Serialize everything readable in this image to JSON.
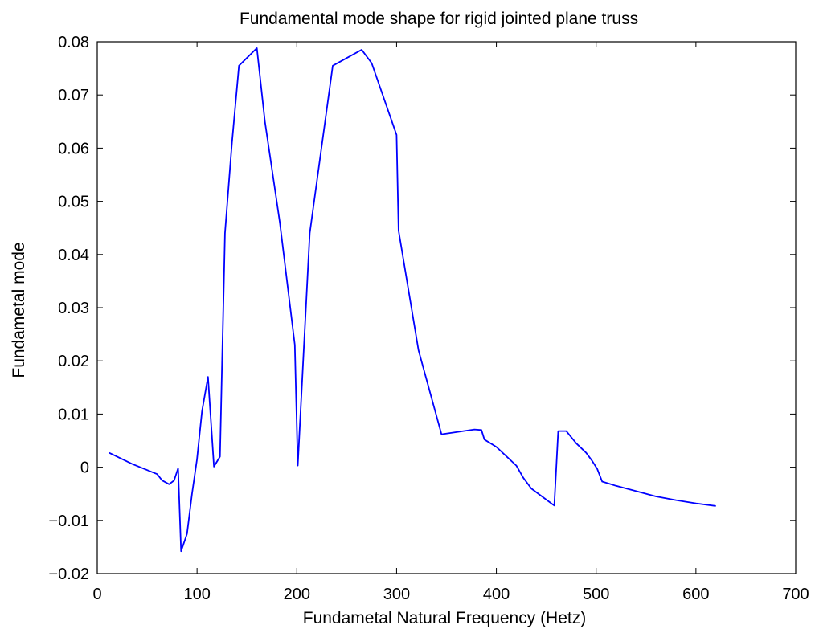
{
  "chart_data": {
    "type": "line",
    "title": "Fundamental mode shape for rigid jointed plane truss",
    "xlabel": "Fundametal Natural Frequency (Hetz)",
    "ylabel": "Fundametal mode",
    "xlim": [
      0,
      700
    ],
    "ylim": [
      -0.02,
      0.08
    ],
    "xticks": [
      0,
      100,
      200,
      300,
      400,
      500,
      600,
      700
    ],
    "xtick_labels": [
      "0",
      "100",
      "200",
      "300",
      "400",
      "500",
      "600",
      "700"
    ],
    "yticks": [
      -0.02,
      -0.01,
      0,
      0.01,
      0.02,
      0.03,
      0.04,
      0.05,
      0.06,
      0.07,
      0.08
    ],
    "ytick_labels": [
      "−0.02",
      "−0.01",
      "0",
      "0.01",
      "0.02",
      "0.03",
      "0.04",
      "0.05",
      "0.06",
      "0.07",
      "0.08"
    ],
    "grid": false,
    "line_color": "#0000ff",
    "series": [
      {
        "x": [
          12,
          35,
          60,
          65,
          72,
          77,
          81,
          84,
          90,
          95,
          100,
          105,
          111,
          117,
          123,
          128,
          135,
          142,
          160,
          168,
          183,
          198,
          201,
          213,
          236,
          265,
          275,
          300,
          302,
          322,
          345,
          378,
          385,
          388,
          400,
          420,
          427,
          435,
          455,
          458,
          462,
          470,
          480,
          490,
          496,
          501,
          506,
          520,
          540,
          560,
          580,
          600,
          620
        ],
        "y": [
          0.0027,
          0.0006,
          -0.0013,
          -0.0025,
          -0.0032,
          -0.0025,
          -0.0002,
          -0.0158,
          -0.0125,
          -0.005,
          0.0015,
          0.0105,
          0.017,
          0.0001,
          0.002,
          0.044,
          0.061,
          0.0755,
          0.0788,
          0.065,
          0.046,
          0.023,
          0.0003,
          0.044,
          0.0755,
          0.0785,
          0.076,
          0.0625,
          0.0445,
          0.022,
          0.0062,
          0.0071,
          0.007,
          0.0052,
          0.0038,
          0.0003,
          -0.002,
          -0.004,
          -0.0068,
          -0.0072,
          0.0068,
          0.0068,
          0.0045,
          0.0027,
          0.0012,
          -0.0003,
          -0.0027,
          -0.0035,
          -0.0045,
          -0.0055,
          -0.0062,
          -0.0068,
          -0.0073
        ]
      }
    ]
  }
}
